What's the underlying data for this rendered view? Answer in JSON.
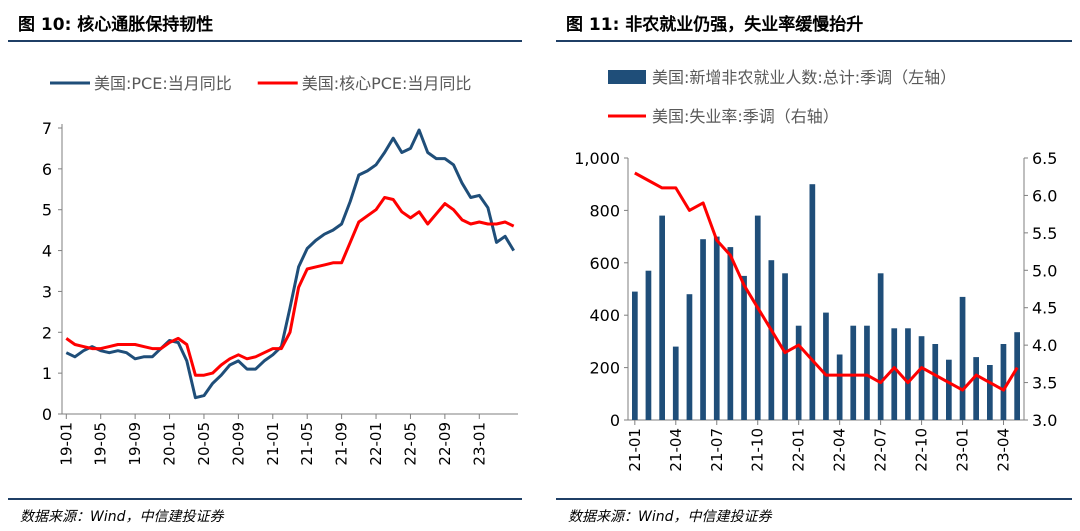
{
  "colors": {
    "blue": "#1f4e79",
    "red": "#ff0000",
    "rule": "#1f3f66",
    "axis": "#7f7f7f"
  },
  "panels": {
    "left": {
      "title": "图 10: 核心通胀保持韧性",
      "source": "数据来源：Wind，中信建投证券"
    },
    "right": {
      "title": "图 11: 非农就业仍强，失业率缓慢抬升",
      "source": "数据来源：Wind，中信建投证券"
    }
  },
  "chart_data": [
    {
      "type": "line",
      "legend_position": "top",
      "grid": false,
      "x": [
        "19-01",
        "19-02",
        "19-03",
        "19-04",
        "19-05",
        "19-06",
        "19-07",
        "19-08",
        "19-09",
        "19-10",
        "19-11",
        "19-12",
        "20-01",
        "20-02",
        "20-03",
        "20-04",
        "20-05",
        "20-06",
        "20-07",
        "20-08",
        "20-09",
        "20-10",
        "20-11",
        "20-12",
        "21-01",
        "21-02",
        "21-03",
        "21-04",
        "21-05",
        "21-06",
        "21-07",
        "21-08",
        "21-09",
        "21-10",
        "21-11",
        "21-12",
        "22-01",
        "22-02",
        "22-03",
        "22-04",
        "22-05",
        "22-06",
        "22-07",
        "22-08",
        "22-09",
        "22-10",
        "22-11",
        "22-12",
        "23-01",
        "23-02",
        "23-03",
        "23-04",
        "23-05"
      ],
      "x_tick_labels": [
        "19-01",
        "19-05",
        "19-09",
        "20-01",
        "20-05",
        "20-09",
        "21-01",
        "21-05",
        "21-09",
        "22-01",
        "22-05",
        "22-09",
        "23-01"
      ],
      "series": [
        {
          "name": "美国:PCE:当月同比",
          "color": "#1f4e79",
          "values": [
            1.5,
            1.4,
            1.55,
            1.65,
            1.55,
            1.5,
            1.55,
            1.5,
            1.35,
            1.4,
            1.4,
            1.6,
            1.8,
            1.75,
            1.3,
            0.4,
            0.45,
            0.75,
            0.95,
            1.2,
            1.3,
            1.1,
            1.1,
            1.3,
            1.45,
            1.65,
            2.6,
            3.6,
            4.05,
            4.25,
            4.4,
            4.5,
            4.65,
            5.2,
            5.85,
            5.95,
            6.1,
            6.4,
            6.75,
            6.4,
            6.5,
            6.95,
            6.4,
            6.25,
            6.25,
            6.1,
            5.65,
            5.3,
            5.35,
            5.05,
            4.2,
            4.35,
            4.0
          ]
        },
        {
          "name": "美国:核心PCE:当月同比",
          "color": "#ff0000",
          "values": [
            1.85,
            1.7,
            1.65,
            1.6,
            1.6,
            1.65,
            1.7,
            1.7,
            1.7,
            1.65,
            1.6,
            1.6,
            1.75,
            1.85,
            1.7,
            0.95,
            0.95,
            1.0,
            1.2,
            1.35,
            1.45,
            1.35,
            1.4,
            1.5,
            1.6,
            1.6,
            2.0,
            3.1,
            3.55,
            3.6,
            3.65,
            3.7,
            3.7,
            4.2,
            4.7,
            4.85,
            5.0,
            5.3,
            5.25,
            4.95,
            4.8,
            4.95,
            4.65,
            4.9,
            5.15,
            5.0,
            4.75,
            4.65,
            4.7,
            4.65,
            4.65,
            4.7,
            4.6
          ]
        }
      ],
      "ylim": [
        0,
        7
      ],
      "y_ticks": [
        "0",
        "1",
        "2",
        "3",
        "4",
        "5",
        "6",
        "7"
      ]
    },
    {
      "type": "bar",
      "legend_position": "top",
      "grid": false,
      "x": [
        "21-01",
        "21-02",
        "21-03",
        "21-04",
        "21-05",
        "21-06",
        "21-07",
        "21-08",
        "21-09",
        "21-10",
        "21-11",
        "21-12",
        "22-01",
        "22-02",
        "22-03",
        "22-04",
        "22-05",
        "22-06",
        "22-07",
        "22-08",
        "22-09",
        "22-10",
        "22-11",
        "22-12",
        "23-01",
        "23-02",
        "23-03",
        "23-04",
        "23-05"
      ],
      "x_tick_labels": [
        "21-01",
        "21-04",
        "21-07",
        "21-10",
        "22-01",
        "22-04",
        "22-07",
        "22-10",
        "23-01",
        "23-04"
      ],
      "series": [
        {
          "name": "美国:新增非农就业人数:总计:季调（左轴）",
          "type": "bar",
          "axis": "left",
          "color": "#1f4e79",
          "values": [
            490,
            570,
            780,
            280,
            480,
            690,
            700,
            660,
            550,
            780,
            610,
            560,
            360,
            900,
            410,
            250,
            360,
            360,
            560,
            350,
            350,
            320,
            290,
            230,
            470,
            240,
            210,
            290,
            335
          ]
        },
        {
          "name": "美国:失业率:季调（右轴）",
          "type": "line",
          "axis": "right",
          "color": "#ff0000",
          "values": [
            6.3,
            6.2,
            6.1,
            6.1,
            5.8,
            5.9,
            5.4,
            5.2,
            4.8,
            4.5,
            4.2,
            3.9,
            4.0,
            3.8,
            3.6,
            3.6,
            3.6,
            3.6,
            3.5,
            3.7,
            3.5,
            3.7,
            3.6,
            3.5,
            3.4,
            3.6,
            3.5,
            3.4,
            3.7
          ]
        }
      ],
      "ylim_left": [
        0,
        1000
      ],
      "y_ticks_left": [
        "0",
        "200",
        "400",
        "600",
        "800",
        "1,000"
      ],
      "ylim_right": [
        3.0,
        6.5
      ],
      "y_ticks_right": [
        "3.0",
        "3.5",
        "4.0",
        "4.5",
        "5.0",
        "5.5",
        "6.0",
        "6.5"
      ]
    }
  ]
}
